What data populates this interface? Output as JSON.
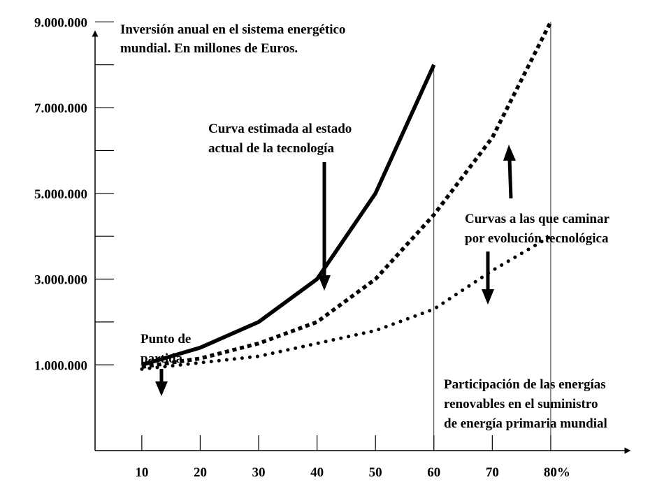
{
  "chart_data": {
    "type": "line",
    "title": [
      "Inversión anual en el sistema energético",
      "mundial. En millones de Euros."
    ],
    "xlabel": [
      "Participación de las energías",
      "renovables en el suministro",
      "de energía primaria mundial"
    ],
    "ylabel": "",
    "x_ticks": [
      "10",
      "20",
      "30",
      "40",
      "50",
      "60",
      "70",
      "80%"
    ],
    "x_tick_values": [
      10,
      20,
      30,
      40,
      50,
      60,
      70,
      80
    ],
    "y_ticks": [
      "1.000.000",
      "3.000.000",
      "5.000.000",
      "7.000.000",
      "9.000.000"
    ],
    "y_tick_values": [
      1000000,
      3000000,
      5000000,
      7000000,
      9000000
    ],
    "y_minor_ticks": [
      2000000,
      4000000,
      6000000,
      8000000
    ],
    "xlim": [
      2,
      97
    ],
    "ylim": [
      -1000000,
      9500000
    ],
    "grid": false,
    "reference_lines_x": [
      60,
      80
    ],
    "series": [
      {
        "style": "solid",
        "x": [
          10,
          20,
          30,
          40,
          50,
          60
        ],
        "y": [
          1000000,
          1400000,
          2000000,
          3000000,
          5000000,
          8000000
        ]
      },
      {
        "style": "dashed",
        "x": [
          10,
          20,
          30,
          40,
          50,
          60,
          70,
          80
        ],
        "y": [
          950000,
          1150000,
          1500000,
          2000000,
          3000000,
          4500000,
          6300000,
          9000000
        ]
      },
      {
        "style": "dotted",
        "x": [
          10,
          20,
          30,
          40,
          50,
          60,
          70,
          80
        ],
        "y": [
          900000,
          1050000,
          1200000,
          1500000,
          1800000,
          2300000,
          3200000,
          4000000
        ]
      }
    ],
    "annotations": [
      {
        "id": "estimated-curve",
        "lines": [
          "Curva estimada al estado",
          "actual de la tecnología"
        ]
      },
      {
        "id": "evolution-curves",
        "lines": [
          "Curvas a las que caminar",
          "por evolución tecnológica"
        ]
      },
      {
        "id": "start-point",
        "lines": [
          "Punto de",
          "partida"
        ]
      }
    ],
    "colors": {
      "line": "#000000",
      "background": "#ffffff"
    }
  }
}
